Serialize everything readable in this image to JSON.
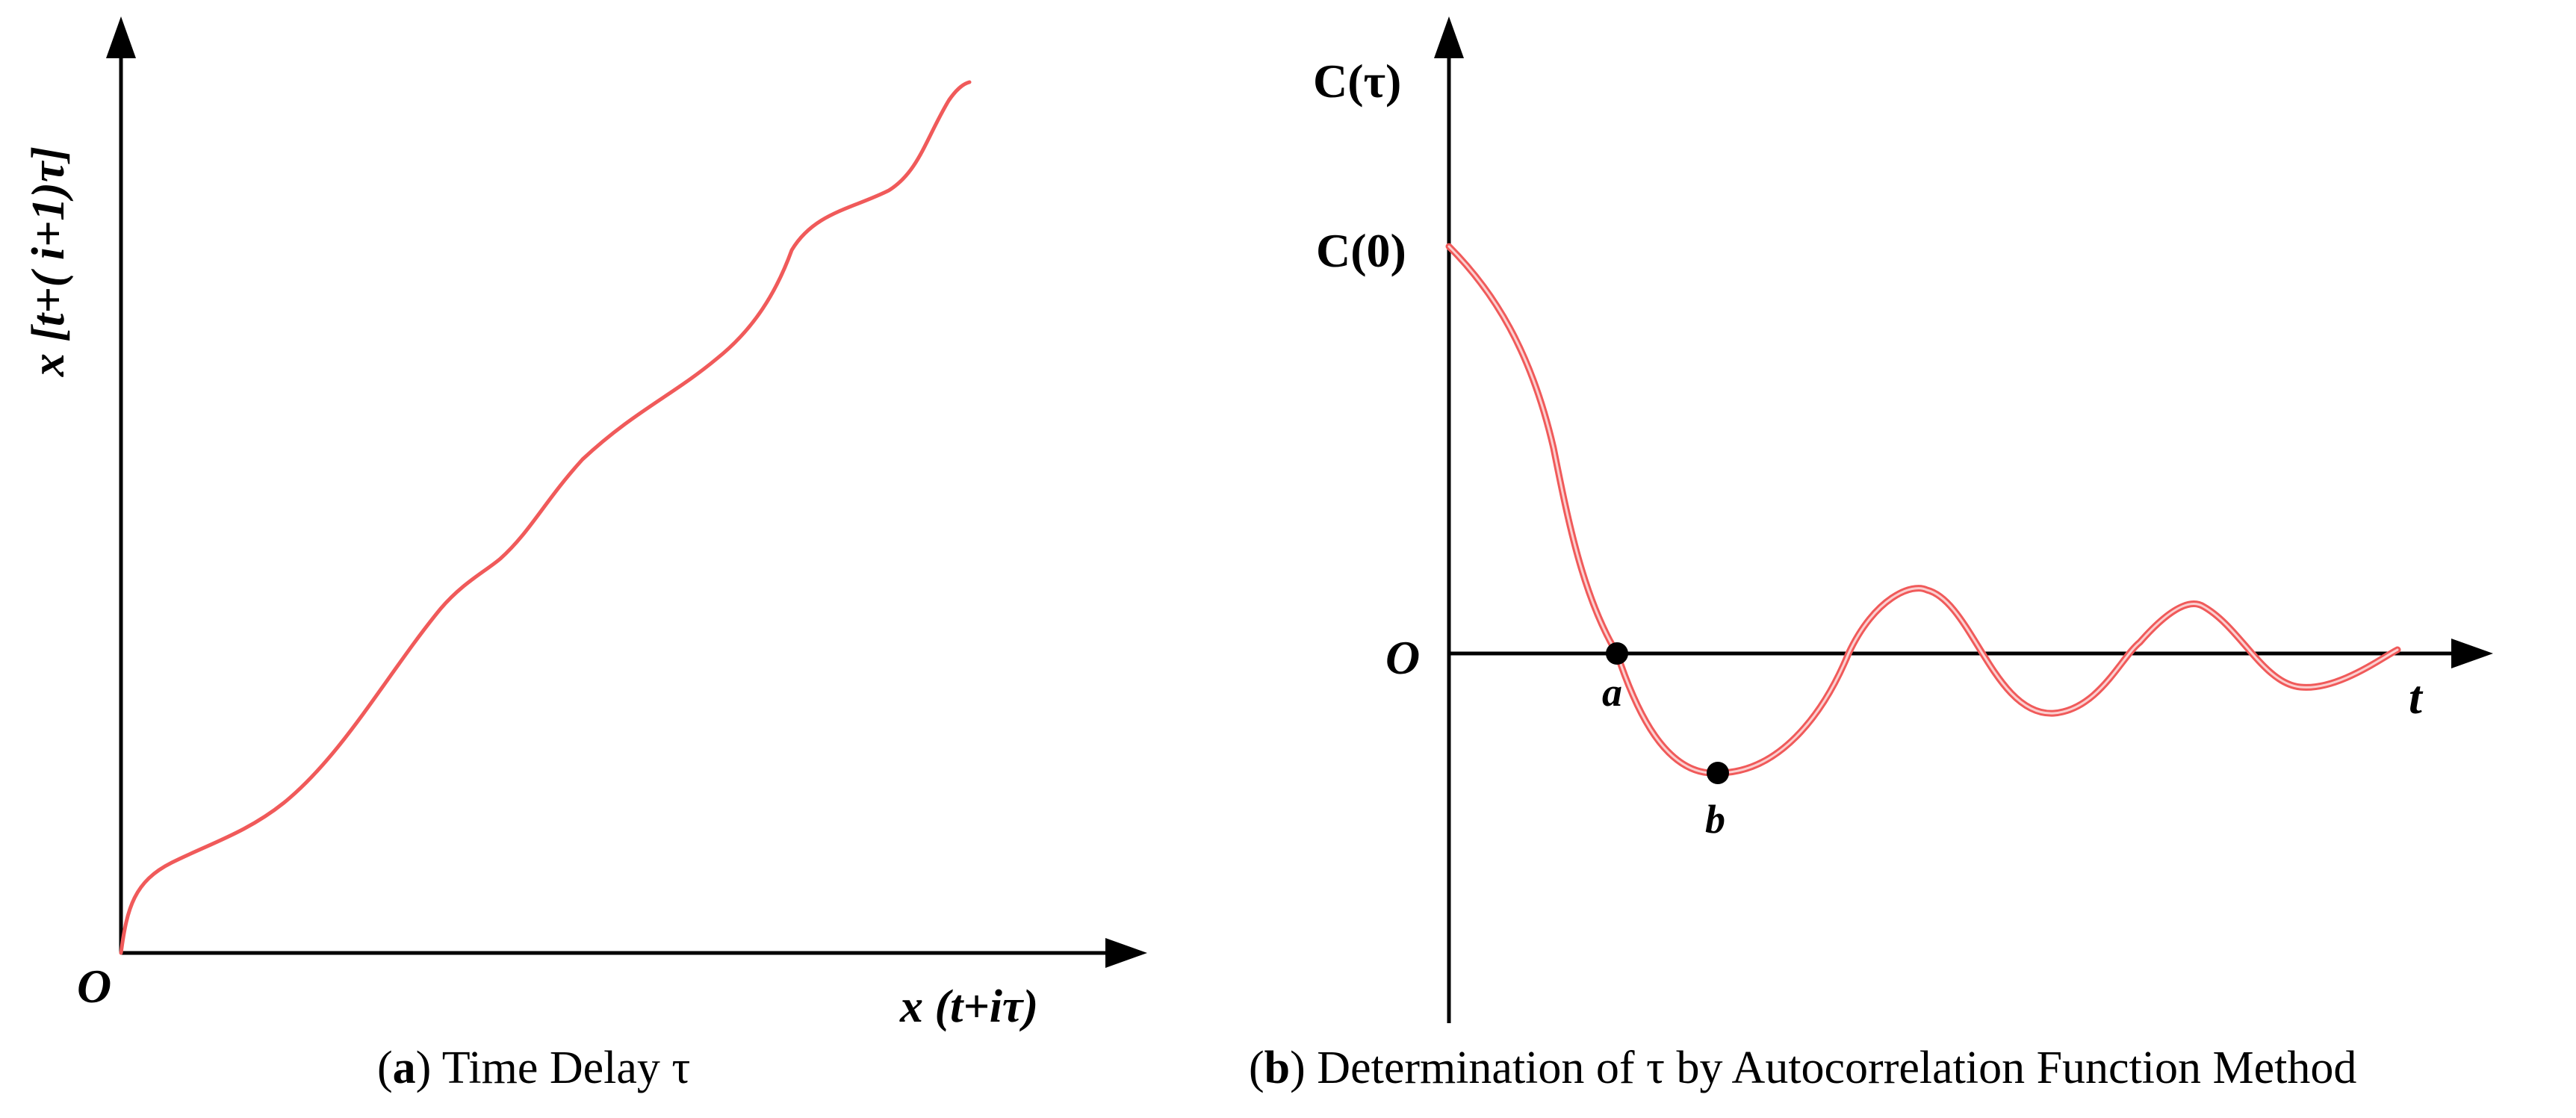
{
  "panel_a": {
    "y_axis_label": "x [t+( i+1)τ]",
    "x_axis_label": "x (t+iτ)",
    "origin_label": "O",
    "caption_letter": "a",
    "caption_text": "Time Delay τ"
  },
  "panel_b": {
    "y_axis_label": "C(τ)",
    "c0_label": "C(0)",
    "origin_label": "O",
    "x_axis_label": "t",
    "point_a_label": "a",
    "point_b_label": "b",
    "caption_letter": "b",
    "caption_text": "Determination of τ by Autocorrelation Function Method"
  },
  "colors": {
    "curve": "#f05a5a",
    "axis": "#000000"
  }
}
